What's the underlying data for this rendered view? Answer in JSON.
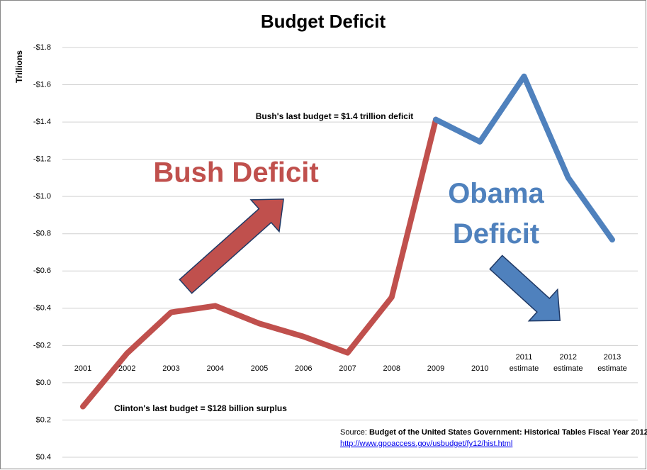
{
  "chart_data": {
    "type": "line",
    "title": "Budget Deficit",
    "y_label": "Trillions",
    "categories": [
      "2001",
      "2002",
      "2003",
      "2004",
      "2005",
      "2006",
      "2007",
      "2008",
      "2009",
      "2010",
      "2011 estimate",
      "2012 estimate",
      "2013 estimate"
    ],
    "series": [
      {
        "name": "Bush Deficit",
        "color": "#c0504d",
        "values": [
          0.128,
          -0.158,
          -0.378,
          -0.413,
          -0.318,
          -0.248,
          -0.161,
          -0.459,
          -1.413,
          null,
          null,
          null,
          null
        ]
      },
      {
        "name": "Obama Deficit",
        "color": "#4f81bd",
        "values": [
          null,
          null,
          null,
          null,
          null,
          null,
          null,
          null,
          -1.413,
          -1.294,
          -1.645,
          -1.101,
          -0.768
        ]
      }
    ],
    "ylim": [
      0.4,
      -1.8
    ],
    "yticks": [
      {
        "value": -1.8,
        "label": "-$1.8"
      },
      {
        "value": -1.6,
        "label": "-$1.6"
      },
      {
        "value": -1.4,
        "label": "-$1.4"
      },
      {
        "value": -1.2,
        "label": "-$1.2"
      },
      {
        "value": -1.0,
        "label": "-$1.0"
      },
      {
        "value": -0.8,
        "label": "-$0.8"
      },
      {
        "value": -0.6,
        "label": "-$0.6"
      },
      {
        "value": -0.4,
        "label": "-$0.4"
      },
      {
        "value": -0.2,
        "label": "-$0.2"
      },
      {
        "value": 0,
        "label": "$0.0"
      },
      {
        "value": 0.2,
        "label": "$0.2"
      },
      {
        "value": 0.4,
        "label": "$0.4"
      }
    ],
    "grid": true,
    "annotations": [
      "Bush's last budget = $1.4 trillion deficit",
      "Clinton's last budget = $128 billion surplus"
    ],
    "source": {
      "prefix": "Source:",
      "title": "Budget of the United States Government: Historical Tables Fiscal Year 2012",
      "url": "http://www.gpoaccess.gov/usbudget/fy12/hist.html"
    }
  }
}
